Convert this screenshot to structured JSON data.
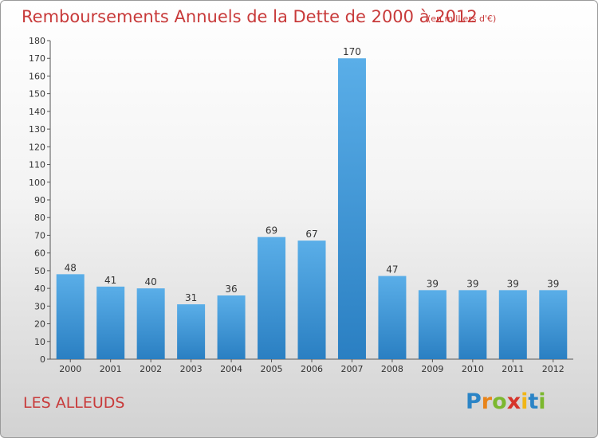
{
  "header": {
    "title": "Remboursements Annuels de la Dette de 2000 à 2012",
    "unit": "(en milliers d'€)"
  },
  "footer": {
    "location": "LES ALLEUDS",
    "logo_text": "Proxiti"
  },
  "colors": {
    "accent_text": "#c83a3a",
    "bar_top": "#5aaee8",
    "bar_bottom": "#2a7fc2"
  },
  "chart_data": {
    "type": "bar",
    "title": "Remboursements Annuels de la Dette de 2000 à 2012",
    "subtitle": "(en milliers d'€)",
    "categories": [
      "2000",
      "2001",
      "2002",
      "2003",
      "2004",
      "2005",
      "2006",
      "2007",
      "2008",
      "2009",
      "2010",
      "2011",
      "2012"
    ],
    "values": [
      48,
      41,
      40,
      31,
      36,
      69,
      67,
      170,
      47,
      39,
      39,
      39,
      39
    ],
    "ylim": [
      0,
      180
    ],
    "yticks": [
      0,
      10,
      20,
      30,
      40,
      50,
      60,
      70,
      80,
      90,
      100,
      110,
      120,
      130,
      140,
      150,
      160,
      170,
      180
    ],
    "xlabel": "",
    "ylabel": "",
    "grid": false,
    "legend": "none"
  }
}
